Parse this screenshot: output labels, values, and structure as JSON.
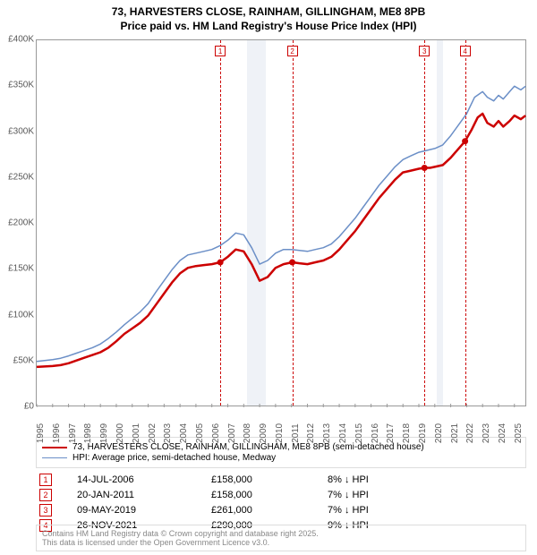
{
  "title_line1": "73, HARVESTERS CLOSE, RAINHAM, GILLINGHAM, ME8 8PB",
  "title_line2": "Price paid vs. HM Land Registry's House Price Index (HPI)",
  "chart": {
    "type": "line",
    "background_color": "#ffffff",
    "border_color": "#999999",
    "x_domain": [
      1995,
      2025.8
    ],
    "y_domain": [
      0,
      400000
    ],
    "y_ticks": [
      0,
      50000,
      100000,
      150000,
      200000,
      250000,
      300000,
      350000,
      400000
    ],
    "y_tick_labels": [
      "£0",
      "£50K",
      "£100K",
      "£150K",
      "£200K",
      "£250K",
      "£300K",
      "£350K",
      "£400K"
    ],
    "x_ticks": [
      1995,
      1996,
      1997,
      1998,
      1999,
      2000,
      2001,
      2002,
      2003,
      2004,
      2005,
      2006,
      2007,
      2008,
      2009,
      2010,
      2011,
      2012,
      2013,
      2014,
      2015,
      2016,
      2017,
      2018,
      2019,
      2020,
      2021,
      2022,
      2023,
      2024,
      2025
    ],
    "recession_bands": [
      {
        "start": 2008.2,
        "end": 2009.4
      },
      {
        "start": 2020.1,
        "end": 2020.5
      }
    ],
    "series": [
      {
        "id": "price_paid",
        "label": "73, HARVESTERS CLOSE, RAINHAM, GILLINGHAM, ME8 8PB (semi-detached house)",
        "color": "#cc0000",
        "width": 2.5,
        "data": [
          [
            1995.0,
            44000
          ],
          [
            1995.5,
            44500
          ],
          [
            1996.0,
            45000
          ],
          [
            1996.5,
            46000
          ],
          [
            1997.0,
            48000
          ],
          [
            1997.5,
            51000
          ],
          [
            1998.0,
            54000
          ],
          [
            1998.5,
            57000
          ],
          [
            1999.0,
            60000
          ],
          [
            1999.5,
            65000
          ],
          [
            2000.0,
            72000
          ],
          [
            2000.5,
            80000
          ],
          [
            2001.0,
            86000
          ],
          [
            2001.5,
            92000
          ],
          [
            2002.0,
            100000
          ],
          [
            2002.5,
            112000
          ],
          [
            2003.0,
            124000
          ],
          [
            2003.5,
            136000
          ],
          [
            2004.0,
            146000
          ],
          [
            2004.5,
            152000
          ],
          [
            2005.0,
            154000
          ],
          [
            2005.5,
            155000
          ],
          [
            2006.0,
            156000
          ],
          [
            2006.53,
            158000
          ],
          [
            2007.0,
            164000
          ],
          [
            2007.5,
            172000
          ],
          [
            2008.0,
            170000
          ],
          [
            2008.5,
            156000
          ],
          [
            2009.0,
            138000
          ],
          [
            2009.5,
            142000
          ],
          [
            2010.0,
            152000
          ],
          [
            2010.5,
            156000
          ],
          [
            2011.05,
            158000
          ],
          [
            2011.5,
            157000
          ],
          [
            2012.0,
            156000
          ],
          [
            2012.5,
            158000
          ],
          [
            2013.0,
            160000
          ],
          [
            2013.5,
            164000
          ],
          [
            2014.0,
            172000
          ],
          [
            2014.5,
            182000
          ],
          [
            2015.0,
            192000
          ],
          [
            2015.5,
            204000
          ],
          [
            2016.0,
            216000
          ],
          [
            2016.5,
            228000
          ],
          [
            2017.0,
            238000
          ],
          [
            2017.5,
            248000
          ],
          [
            2018.0,
            256000
          ],
          [
            2018.5,
            258000
          ],
          [
            2019.0,
            260000
          ],
          [
            2019.35,
            261000
          ],
          [
            2019.7,
            261000
          ],
          [
            2020.0,
            262000
          ],
          [
            2020.5,
            264000
          ],
          [
            2021.0,
            272000
          ],
          [
            2021.5,
            282000
          ],
          [
            2021.9,
            290000
          ],
          [
            2022.3,
            302000
          ],
          [
            2022.7,
            316000
          ],
          [
            2023.0,
            320000
          ],
          [
            2023.3,
            310000
          ],
          [
            2023.7,
            306000
          ],
          [
            2024.0,
            312000
          ],
          [
            2024.3,
            306000
          ],
          [
            2024.7,
            312000
          ],
          [
            2025.0,
            318000
          ],
          [
            2025.4,
            314000
          ],
          [
            2025.7,
            318000
          ]
        ]
      },
      {
        "id": "hpi",
        "label": "HPI: Average price, semi-detached house, Medway",
        "color": "#6b8fc7",
        "width": 1.5,
        "data": [
          [
            1995.0,
            50000
          ],
          [
            1995.5,
            51000
          ],
          [
            1996.0,
            52000
          ],
          [
            1996.5,
            53500
          ],
          [
            1997.0,
            56000
          ],
          [
            1997.5,
            59000
          ],
          [
            1998.0,
            62000
          ],
          [
            1998.5,
            65000
          ],
          [
            1999.0,
            69000
          ],
          [
            1999.5,
            75000
          ],
          [
            2000.0,
            82000
          ],
          [
            2000.5,
            90000
          ],
          [
            2001.0,
            97000
          ],
          [
            2001.5,
            104000
          ],
          [
            2002.0,
            113000
          ],
          [
            2002.5,
            126000
          ],
          [
            2003.0,
            138000
          ],
          [
            2003.5,
            150000
          ],
          [
            2004.0,
            160000
          ],
          [
            2004.5,
            166000
          ],
          [
            2005.0,
            168000
          ],
          [
            2005.5,
            170000
          ],
          [
            2006.0,
            172000
          ],
          [
            2006.5,
            176000
          ],
          [
            2007.0,
            182000
          ],
          [
            2007.5,
            190000
          ],
          [
            2008.0,
            188000
          ],
          [
            2008.5,
            174000
          ],
          [
            2009.0,
            156000
          ],
          [
            2009.5,
            160000
          ],
          [
            2010.0,
            168000
          ],
          [
            2010.5,
            172000
          ],
          [
            2011.0,
            172000
          ],
          [
            2011.5,
            171000
          ],
          [
            2012.0,
            170000
          ],
          [
            2012.5,
            172000
          ],
          [
            2013.0,
            174000
          ],
          [
            2013.5,
            178000
          ],
          [
            2014.0,
            186000
          ],
          [
            2014.5,
            196000
          ],
          [
            2015.0,
            206000
          ],
          [
            2015.5,
            218000
          ],
          [
            2016.0,
            230000
          ],
          [
            2016.5,
            242000
          ],
          [
            2017.0,
            252000
          ],
          [
            2017.5,
            262000
          ],
          [
            2018.0,
            270000
          ],
          [
            2018.5,
            274000
          ],
          [
            2019.0,
            278000
          ],
          [
            2019.5,
            280000
          ],
          [
            2020.0,
            282000
          ],
          [
            2020.5,
            286000
          ],
          [
            2021.0,
            296000
          ],
          [
            2021.5,
            308000
          ],
          [
            2022.0,
            320000
          ],
          [
            2022.5,
            338000
          ],
          [
            2023.0,
            344000
          ],
          [
            2023.3,
            338000
          ],
          [
            2023.7,
            334000
          ],
          [
            2024.0,
            340000
          ],
          [
            2024.3,
            336000
          ],
          [
            2024.7,
            344000
          ],
          [
            2025.0,
            350000
          ],
          [
            2025.4,
            346000
          ],
          [
            2025.7,
            350000
          ]
        ]
      }
    ],
    "sale_markers": [
      {
        "num": "1",
        "x": 2006.53,
        "y": 158000,
        "color": "#cc0000"
      },
      {
        "num": "2",
        "x": 2011.05,
        "y": 158000,
        "color": "#cc0000"
      },
      {
        "num": "3",
        "x": 2019.35,
        "y": 261000,
        "color": "#cc0000"
      },
      {
        "num": "4",
        "x": 2021.9,
        "y": 290000,
        "color": "#cc0000"
      }
    ],
    "axis_label_fontsize": 10,
    "axis_color": "#595959"
  },
  "sales_table": [
    {
      "num": "1",
      "date": "14-JUL-2006",
      "price": "£158,000",
      "diff": "8% ↓ HPI",
      "color": "#cc0000"
    },
    {
      "num": "2",
      "date": "20-JAN-2011",
      "price": "£158,000",
      "diff": "7% ↓ HPI",
      "color": "#cc0000"
    },
    {
      "num": "3",
      "date": "09-MAY-2019",
      "price": "£261,000",
      "diff": "7% ↓ HPI",
      "color": "#cc0000"
    },
    {
      "num": "4",
      "date": "26-NOV-2021",
      "price": "£290,000",
      "diff": "9% ↓ HPI",
      "color": "#cc0000"
    }
  ],
  "footer_line1": "Contains HM Land Registry data © Crown copyright and database right 2025.",
  "footer_line2": "This data is licensed under the Open Government Licence v3.0."
}
